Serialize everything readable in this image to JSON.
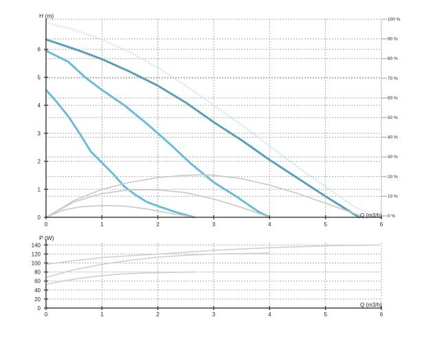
{
  "chart_data": [
    {
      "type": "line",
      "ylabel": "H (m)",
      "xlabel": "Q (m3/h)",
      "xlim": [
        0,
        6
      ],
      "ylim": [
        0,
        7
      ],
      "x_ticks": [
        "0",
        "1",
        "2",
        "3",
        "4",
        "5",
        "6"
      ],
      "y_ticks": [
        "0",
        "1",
        "2",
        "3",
        "4",
        "5",
        "6"
      ],
      "y2_ticks": [
        "0 %",
        "10 %",
        "20 %",
        "30 %",
        "40 %",
        "50 %",
        "60 %",
        "70 %",
        "80 %",
        "90 %",
        "100 %"
      ],
      "y2lim": [
        0,
        100
      ],
      "grid": true,
      "colors": {
        "curve": "#6bbcd8",
        "curve_max": "#5a9fb5",
        "efficiency": "#c8c8c8",
        "max_efficiency": "#bfe0ef"
      },
      "series": [
        {
          "kind": "head",
          "x": [
            0,
            0.3,
            0.6,
            1.0,
            1.5,
            2.0,
            2.5,
            3.0,
            3.5,
            4.0,
            4.5,
            5.0,
            5.4,
            5.6
          ],
          "y": [
            6.35,
            6.15,
            5.95,
            5.65,
            5.2,
            4.7,
            4.1,
            3.4,
            2.75,
            2.05,
            1.4,
            0.75,
            0.25,
            0.0
          ]
        },
        {
          "kind": "head",
          "x": [
            0,
            0.2,
            0.4,
            0.7,
            1.0,
            1.4,
            1.8,
            2.2,
            2.6,
            3.0,
            3.4,
            3.8,
            4.0
          ],
          "y": [
            5.95,
            5.75,
            5.55,
            5.0,
            4.55,
            4.0,
            3.35,
            2.65,
            1.9,
            1.25,
            0.75,
            0.2,
            0.0
          ]
        },
        {
          "kind": "head",
          "x": [
            0,
            0.2,
            0.4,
            0.6,
            0.8,
            1.0,
            1.2,
            1.4,
            1.6,
            1.8,
            2.0,
            2.3,
            2.65
          ],
          "y": [
            4.55,
            4.1,
            3.6,
            3.0,
            2.35,
            1.95,
            1.55,
            1.1,
            0.8,
            0.55,
            0.4,
            0.2,
            0.0
          ]
        },
        {
          "kind": "efficiency",
          "x": [
            0,
            0.5,
            1.0,
            1.5,
            2.0,
            2.5,
            2.8,
            3.0,
            3.5,
            4.0,
            4.5,
            5.0,
            5.5,
            5.7
          ],
          "y": [
            0,
            0.6,
            1.0,
            1.25,
            1.42,
            1.5,
            1.52,
            1.5,
            1.38,
            1.15,
            0.85,
            0.5,
            0.15,
            0.0
          ]
        },
        {
          "kind": "efficiency",
          "x": [
            0,
            0.5,
            1.0,
            1.5,
            2.0,
            2.5,
            3.0,
            3.5,
            4.0
          ],
          "y": [
            0,
            0.55,
            0.85,
            0.98,
            0.98,
            0.88,
            0.65,
            0.35,
            0.0
          ]
        },
        {
          "kind": "efficiency",
          "x": [
            0,
            0.3,
            0.6,
            1.0,
            1.4,
            1.8,
            2.2,
            2.65
          ],
          "y": [
            0,
            0.25,
            0.37,
            0.42,
            0.4,
            0.3,
            0.15,
            0.0
          ]
        },
        {
          "kind": "max_efficiency",
          "x": [
            0,
            0.5,
            1.0,
            1.5,
            2.0,
            2.5,
            3.0,
            3.5,
            4.0,
            4.5,
            5.0,
            5.5,
            5.9
          ],
          "y": [
            6.95,
            6.7,
            6.35,
            5.9,
            5.35,
            4.7,
            4.0,
            3.3,
            2.55,
            1.8,
            1.1,
            0.4,
            0.0
          ]
        }
      ]
    },
    {
      "type": "line",
      "ylabel": "P (W)",
      "xlabel": "Q (m3/h)",
      "xlim": [
        0,
        6
      ],
      "ylim": [
        0,
        145
      ],
      "x_ticks": [
        "0",
        "1",
        "2",
        "3",
        "4",
        "5",
        "6"
      ],
      "y_ticks": [
        "0",
        "20",
        "40",
        "60",
        "80",
        "100",
        "120",
        "140"
      ],
      "grid": true,
      "colors": {
        "curve": "#cfcfcf"
      },
      "series": [
        {
          "kind": "power",
          "x": [
            0,
            0.5,
            1.0,
            1.5,
            2.0,
            2.5,
            3.0,
            3.5,
            4.0,
            4.5,
            5.0,
            5.5,
            5.95
          ],
          "y": [
            97,
            105,
            112,
            116,
            120,
            124,
            128,
            131,
            134,
            136,
            138,
            139,
            140
          ]
        },
        {
          "kind": "power",
          "x": [
            0,
            0.5,
            1.0,
            1.5,
            2.0,
            2.5,
            3.0,
            3.5,
            4.0
          ],
          "y": [
            68,
            85,
            97,
            106,
            113,
            117,
            120,
            121,
            122
          ]
        },
        {
          "kind": "power",
          "x": [
            0,
            0.3,
            0.6,
            1.0,
            1.4,
            1.8,
            2.2,
            2.65
          ],
          "y": [
            52,
            60,
            66,
            72,
            76,
            78,
            79,
            80
          ]
        }
      ]
    }
  ]
}
